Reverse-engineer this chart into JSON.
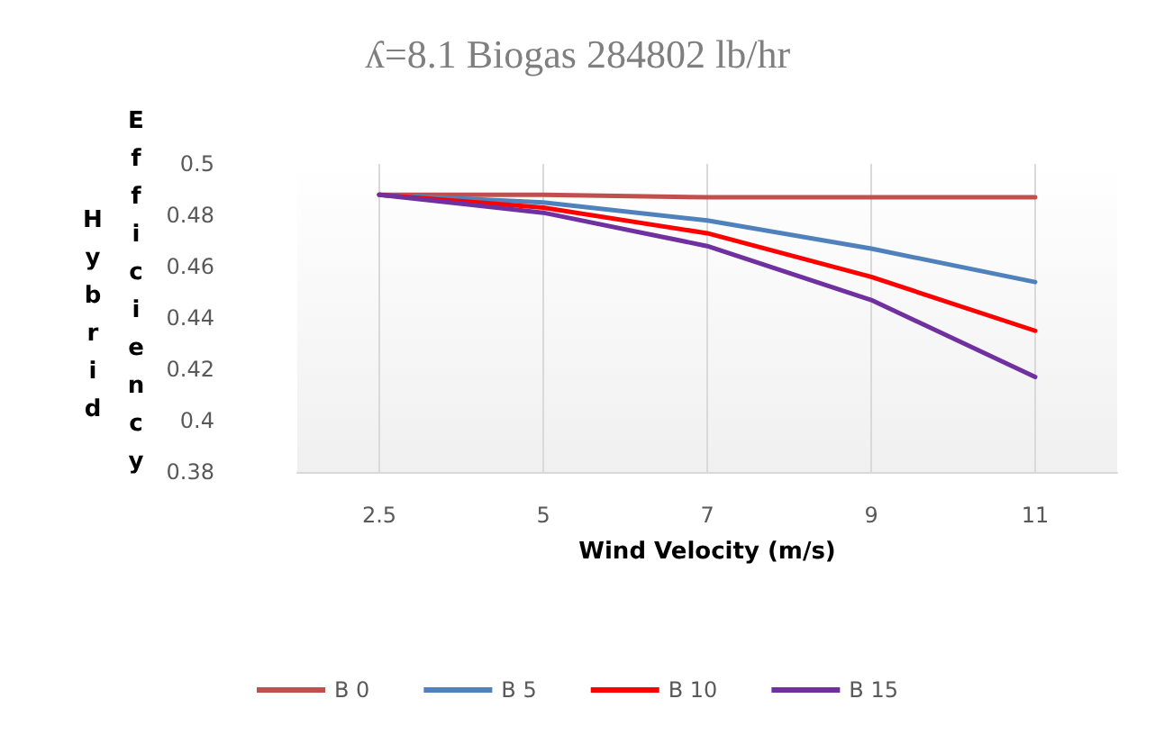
{
  "chart_data": {
    "type": "line",
    "title": "ʎ=8.1 Biogas 284802 lb/hr",
    "xlabel": "Wind Velocity (m/s)",
    "ylabel": "Hybrid Efficiency",
    "categories": [
      "2.5",
      "5",
      "7",
      "9",
      "11"
    ],
    "series": [
      {
        "name": "B 0",
        "color": "#c0504d",
        "values": [
          0.488,
          0.488,
          0.487,
          0.487,
          0.487
        ]
      },
      {
        "name": "B 5",
        "color": "#4f81bd",
        "values": [
          0.488,
          0.485,
          0.478,
          0.467,
          0.454
        ]
      },
      {
        "name": "B 10",
        "color": "#ff0000",
        "values": [
          0.488,
          0.483,
          0.473,
          0.456,
          0.435
        ]
      },
      {
        "name": "B 15",
        "color": "#7030a0",
        "values": [
          0.488,
          0.481,
          0.468,
          0.447,
          0.417
        ]
      }
    ],
    "ylim": [
      0.38,
      0.5
    ],
    "yticks": [
      0.38,
      0.4,
      0.42,
      0.44,
      0.46,
      0.48,
      0.5
    ],
    "grid": "x",
    "legend": "bottom",
    "marker": "none",
    "line_style": "solid"
  }
}
